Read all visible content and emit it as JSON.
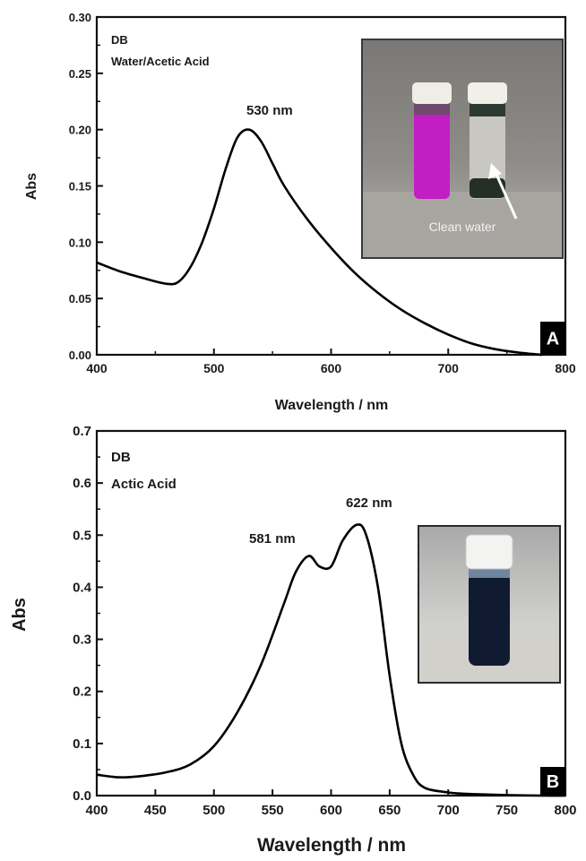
{
  "chart_data": [
    {
      "type": "line",
      "panel_label": "A",
      "annotations": [
        "DB",
        "Water/Acetic Acid"
      ],
      "peak_labels": [
        {
          "text": "530 nm",
          "x": 530,
          "y": 0.2
        }
      ],
      "xlabel": "Wavelength / nm",
      "ylabel": "Abs",
      "xlim": [
        400,
        800
      ],
      "ylim": [
        0,
        0.3
      ],
      "xticks": [
        400,
        500,
        600,
        700,
        800
      ],
      "yticks": [
        0.0,
        0.05,
        0.1,
        0.15,
        0.2,
        0.25,
        0.3
      ],
      "xtick_labels": [
        "400",
        "500",
        "600",
        "700",
        "800"
      ],
      "ytick_labels": [
        "0.00",
        "0.05",
        "0.10",
        "0.15",
        "0.20",
        "0.25",
        "0.30"
      ],
      "inset_photo": {
        "description_text": "Clean water",
        "vial_colors": [
          "#c81ec8",
          "#b9b7b0"
        ]
      },
      "series": [
        {
          "x": [
            400,
            420,
            440,
            460,
            470,
            480,
            490,
            500,
            510,
            520,
            530,
            540,
            550,
            560,
            580,
            600,
            620,
            640,
            660,
            680,
            700,
            720,
            740,
            760,
            780
          ],
          "y": [
            0.082,
            0.074,
            0.068,
            0.063,
            0.065,
            0.078,
            0.1,
            0.13,
            0.165,
            0.193,
            0.2,
            0.19,
            0.17,
            0.15,
            0.12,
            0.095,
            0.073,
            0.055,
            0.04,
            0.028,
            0.018,
            0.01,
            0.005,
            0.002,
            0.0
          ]
        }
      ]
    },
    {
      "type": "line",
      "panel_label": "B",
      "annotations": [
        "DB",
        "Actic Acid"
      ],
      "peak_labels": [
        {
          "text": "581 nm",
          "x": 581,
          "y": 0.46
        },
        {
          "text": "622 nm",
          "x": 622,
          "y": 0.52
        }
      ],
      "xlabel": "Wavelength / nm",
      "ylabel": "Abs",
      "xlim": [
        400,
        800
      ],
      "ylim": [
        0,
        0.7
      ],
      "xticks": [
        400,
        450,
        500,
        550,
        600,
        650,
        700,
        750,
        800
      ],
      "yticks": [
        0.0,
        0.1,
        0.2,
        0.3,
        0.4,
        0.5,
        0.6,
        0.7
      ],
      "xtick_labels": [
        "400",
        "450",
        "500",
        "550",
        "600",
        "650",
        "700",
        "750",
        "800"
      ],
      "ytick_labels": [
        "0.0",
        "0.1",
        "0.2",
        "0.3",
        "0.4",
        "0.5",
        "0.6",
        "0.7"
      ],
      "inset_photo": {
        "vial_colors": [
          "#0f1a2e",
          "#f0f0ee"
        ]
      },
      "series": [
        {
          "x": [
            400,
            420,
            440,
            460,
            480,
            500,
            520,
            540,
            560,
            570,
            581,
            590,
            600,
            610,
            622,
            630,
            640,
            650,
            660,
            670,
            680,
            700,
            720,
            750,
            780,
            800
          ],
          "y": [
            0.04,
            0.035,
            0.038,
            0.045,
            0.06,
            0.095,
            0.16,
            0.25,
            0.37,
            0.43,
            0.46,
            0.44,
            0.44,
            0.49,
            0.52,
            0.5,
            0.4,
            0.23,
            0.1,
            0.04,
            0.015,
            0.006,
            0.003,
            0.001,
            0.0,
            0.0
          ]
        }
      ]
    }
  ]
}
